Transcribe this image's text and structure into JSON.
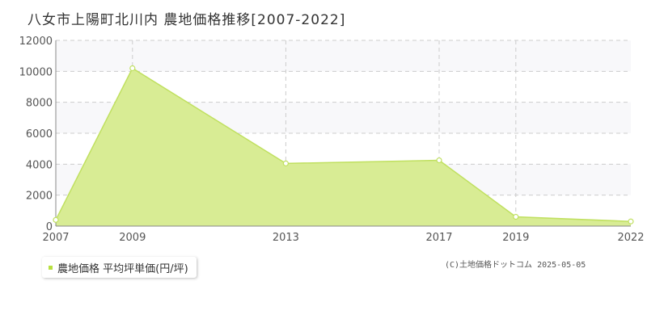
{
  "title": "八女市上陽町北川内 農地価格推移[2007-2022]",
  "legend": {
    "label": "農地価格 平均坪単価(円/坪)"
  },
  "credit": "(C)土地価格ドットコム 2025-05-05",
  "colors": {
    "area_fill": "#d8ec94",
    "area_stroke": "#c0e060",
    "marker_fill": "#ffffff",
    "grid": "#cccccc",
    "plot_band": "#f8f8fa",
    "legend_swatch": "#b8e040"
  },
  "chart_data": {
    "type": "area",
    "x": [
      2007,
      2009,
      2013,
      2017,
      2019,
      2022
    ],
    "x_tick_labels": [
      "2007",
      "2009",
      "2013",
      "2017",
      "2019",
      "2022"
    ],
    "y_ticks": [
      0,
      2000,
      4000,
      6000,
      8000,
      10000,
      12000
    ],
    "ylim": [
      0,
      12000
    ],
    "xlim": [
      2007,
      2022
    ],
    "grid": true,
    "legend_position": "bottom-left",
    "series": [
      {
        "name": "農地価格 平均坪単価(円/坪)",
        "values": [
          400,
          10200,
          4050,
          4250,
          600,
          300
        ]
      }
    ]
  }
}
